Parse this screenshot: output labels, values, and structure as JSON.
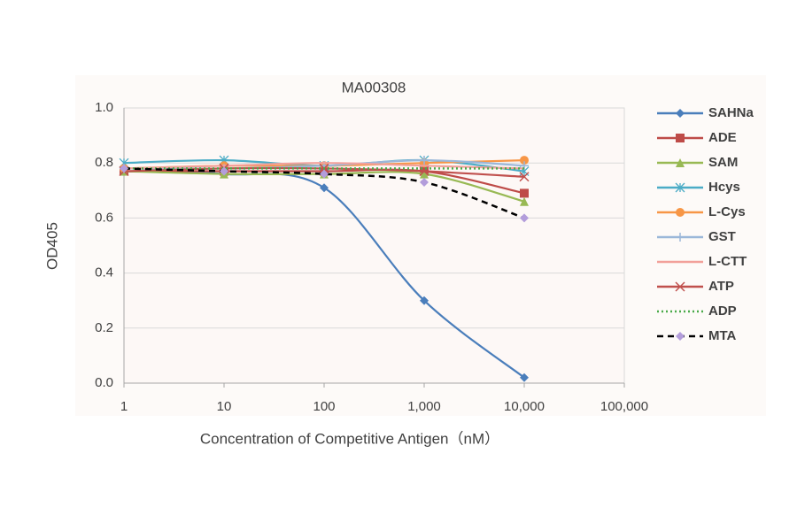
{
  "chart_data": {
    "type": "line",
    "title": "MA00308",
    "x_label": "Concentration of Competitive Antigen（nM）",
    "y_label": "OD405",
    "x": [
      1,
      10,
      100,
      1000,
      10000
    ],
    "xlim": [
      1,
      100000
    ],
    "xscale": "log",
    "xticks": [
      1,
      10,
      100,
      {
        "value": 1000,
        "label": "1,000"
      },
      {
        "value": 10000,
        "label": "10,000"
      },
      {
        "value": 100000,
        "label": "100,000"
      }
    ],
    "ylim": [
      0,
      1
    ],
    "yticks": [
      {
        "value": 0,
        "label": "0.0"
      },
      0.2,
      0.4,
      0.6,
      0.8,
      {
        "value": 1,
        "label": "1.0"
      }
    ],
    "grid": true,
    "legend": "right",
    "smooth": true,
    "series": [
      {
        "name": "SAHNa",
        "color": "#4a7ebb",
        "marker": "diamond",
        "dash": "solid",
        "values": [
          0.77,
          0.76,
          0.71,
          0.3,
          0.02
        ]
      },
      {
        "name": "ADE",
        "color": "#be4b48",
        "marker": "square",
        "dash": "solid",
        "values": [
          0.77,
          0.77,
          0.77,
          0.77,
          0.69
        ]
      },
      {
        "name": "SAM",
        "color": "#98b954",
        "marker": "triangle",
        "dash": "solid",
        "values": [
          0.77,
          0.76,
          0.76,
          0.76,
          0.66
        ]
      },
      {
        "name": "Hcys",
        "color": "#4bacc6",
        "marker": "asterisk",
        "dash": "solid",
        "values": [
          0.8,
          0.81,
          0.79,
          0.81,
          0.77
        ]
      },
      {
        "name": "L-Cys",
        "color": "#f79646",
        "marker": "circle",
        "dash": "solid",
        "values": [
          0.78,
          0.79,
          0.79,
          0.8,
          0.81
        ]
      },
      {
        "name": "GST",
        "color": "#9bb7d9",
        "marker": "plus",
        "dash": "solid",
        "values": [
          0.78,
          0.78,
          0.79,
          0.81,
          0.79
        ]
      },
      {
        "name": "L-CTT",
        "color": "#f2a09a",
        "marker": "none",
        "dash": "solid",
        "values": [
          0.78,
          0.79,
          0.8,
          0.79,
          0.78
        ]
      },
      {
        "name": "ATP",
        "color": "#c0504d",
        "marker": "x",
        "dash": "solid",
        "values": [
          0.77,
          0.78,
          0.78,
          0.77,
          0.75
        ]
      },
      {
        "name": "ADP",
        "color": "#4aaa4a",
        "marker": "none",
        "dash": "dotted",
        "values": [
          0.78,
          0.78,
          0.78,
          0.78,
          0.78
        ]
      },
      {
        "name": "MTA",
        "color": "#000000",
        "marker": "diamond",
        "marker_color": "#b39ddb",
        "dash": "dashed",
        "values": [
          0.78,
          0.77,
          0.76,
          0.73,
          0.6
        ]
      }
    ]
  }
}
